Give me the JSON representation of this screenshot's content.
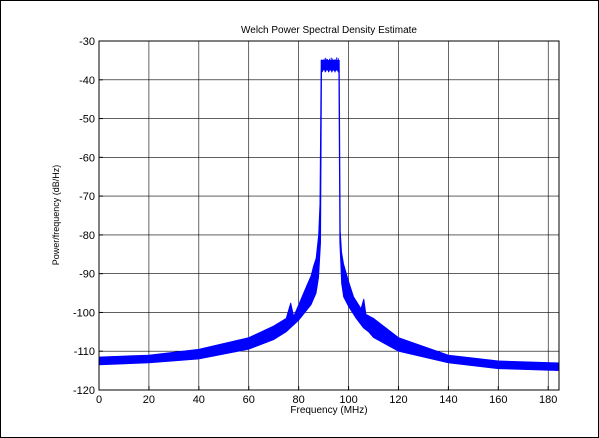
{
  "chart_data": {
    "type": "line",
    "title": "Welch Power Spectral Density Estimate",
    "xlabel": "Frequency (MHz)",
    "ylabel": "Power/frequency (dB/Hz)",
    "xlim": [
      0,
      184.32
    ],
    "ylim": [
      -120,
      -30
    ],
    "xticks": [
      0,
      20,
      40,
      60,
      80,
      100,
      120,
      140,
      160,
      180
    ],
    "yticks": [
      -30,
      -40,
      -50,
      -60,
      -70,
      -80,
      -90,
      -100,
      -110,
      -120
    ],
    "grid": true,
    "series": [
      {
        "color": "#0000ff",
        "upper": {
          "x": [
            0,
            20,
            40,
            60,
            70,
            75,
            76.8,
            78,
            80,
            83,
            85,
            86,
            87,
            88,
            88.5,
            89,
            96.3,
            96.7,
            97.2,
            98,
            100,
            102,
            105,
            106.1,
            107,
            110,
            120,
            140,
            160,
            184.32
          ],
          "y": [
            -111.5,
            -111,
            -109.5,
            -106.5,
            -103.5,
            -101.5,
            -97.5,
            -101,
            -98,
            -93.5,
            -90.5,
            -88,
            -86,
            -80,
            -72,
            -35,
            -35,
            -79,
            -84.5,
            -87.5,
            -92,
            -96,
            -99,
            -96.5,
            -100.5,
            -101.5,
            -106.5,
            -111,
            -112.5,
            -113
          ]
        },
        "lower": {
          "x": [
            0,
            20,
            40,
            60,
            70,
            75,
            80,
            85,
            87,
            88,
            88.8,
            89.2,
            96.1,
            96.5,
            97.2,
            98,
            100,
            103,
            106,
            108,
            110,
            120,
            140,
            160,
            184.32
          ],
          "y": [
            -113.5,
            -113,
            -112,
            -109.5,
            -107,
            -105,
            -102,
            -98,
            -95,
            -91,
            -82,
            -37.5,
            -37.5,
            -82,
            -92.5,
            -96,
            -98.5,
            -101.5,
            -104,
            -105,
            -106.5,
            -110,
            -113,
            -114.5,
            -115
          ]
        }
      }
    ]
  }
}
